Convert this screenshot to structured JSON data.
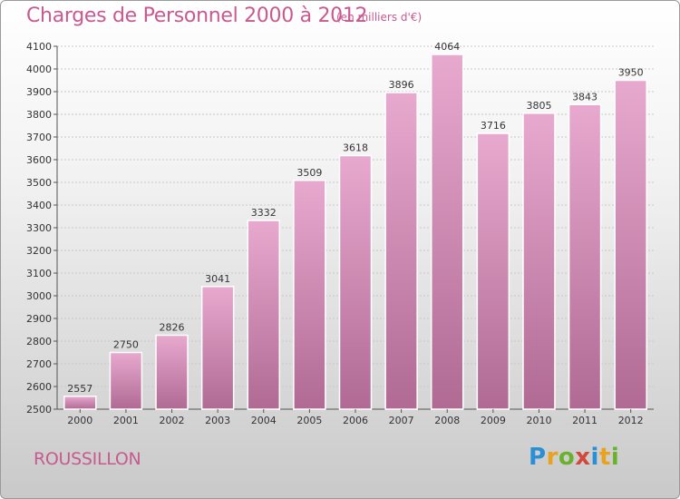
{
  "header": {
    "title": "Charges de Personnel 2000 à 2012",
    "subtitle": "(en milliers d'€)"
  },
  "footer": {
    "commune": "ROUSSILLON",
    "logo_text": "Proxiti"
  },
  "colors": {
    "bar_top": "#e8a9cf",
    "bar_bottom": "#b06a93",
    "text_accent": "#c85a8f"
  },
  "chart_data": {
    "type": "bar",
    "title": "Charges de Personnel 2000 à 2012",
    "subtitle": "(en milliers d'€)",
    "categories": [
      "2000",
      "2001",
      "2002",
      "2003",
      "2004",
      "2005",
      "2006",
      "2007",
      "2008",
      "2009",
      "2010",
      "2011",
      "2012"
    ],
    "values": [
      2557,
      2750,
      2826,
      3041,
      3332,
      3509,
      3618,
      3896,
      4064,
      3716,
      3805,
      3843,
      3950
    ],
    "ylim": [
      2500,
      4100
    ],
    "yticks": [
      2500,
      2600,
      2700,
      2800,
      2900,
      3000,
      3100,
      3200,
      3300,
      3400,
      3500,
      3600,
      3700,
      3800,
      3900,
      4000,
      4100
    ],
    "grid": true,
    "legend": "none"
  }
}
